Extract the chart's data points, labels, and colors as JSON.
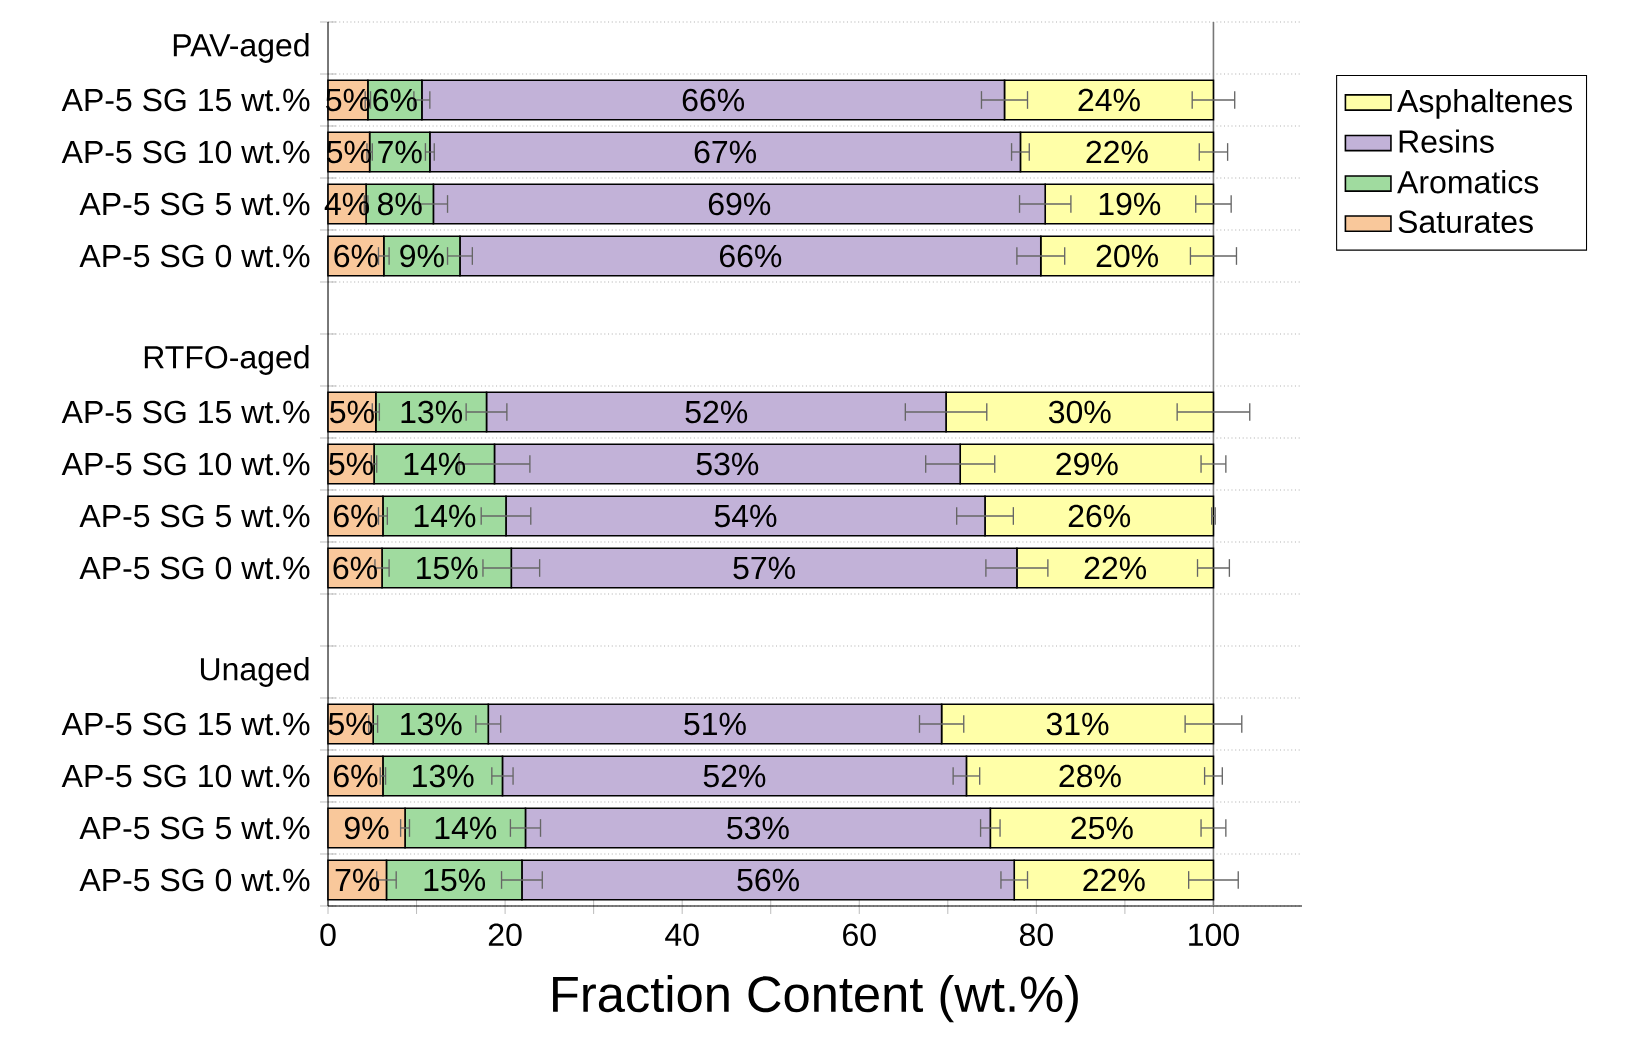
{
  "chart_data": {
    "type": "bar",
    "orientation": "horizontal",
    "stacked": true,
    "xlabel": "Fraction Content (wt.%)",
    "categories": [
      "PAV-aged",
      "AP-5 SG 15 wt.%",
      "AP-5 SG 10 wt.%",
      "AP-5 SG 5 wt.%",
      "AP-5 SG 0 wt.%",
      null,
      "RTFO-aged",
      "AP-5 SG 15 wt.%",
      "AP-5 SG 10 wt.%",
      "AP-5 SG 5 wt.%",
      "AP-5 SG 0 wt.%",
      null,
      "Unaged",
      "AP-5 SG 15 wt.%",
      "AP-5 SG 10 wt.%",
      "AP-5 SG 5 wt.%",
      "AP-5 SG 0 wt.%"
    ],
    "series": [
      {
        "name": "Saturates",
        "color": "#f9c89b",
        "values": [
          null,
          4.5,
          4.7,
          4.3,
          6.3,
          null,
          null,
          5.4,
          5.2,
          6.2,
          6.1,
          null,
          null,
          5.1,
          6.2,
          8.7,
          6.6
        ],
        "errors": [
          null,
          0.3,
          0.3,
          0.2,
          0.6,
          null,
          null,
          0.4,
          0.3,
          0.5,
          0.8,
          null,
          null,
          0.5,
          0.3,
          0.5,
          1.1
        ],
        "value_labels": [
          null,
          "5%",
          "5%",
          "4%",
          "6%",
          null,
          null,
          "5%",
          "5%",
          "6%",
          "6%",
          null,
          null,
          "5%",
          "6%",
          "9%",
          "7%"
        ]
      },
      {
        "name": "Aromatics",
        "color": "#a0db9f",
        "values": [
          null,
          6.1,
          6.8,
          7.6,
          8.6,
          null,
          null,
          12.5,
          13.6,
          13.9,
          14.6,
          null,
          null,
          13.0,
          13.5,
          13.6,
          15.3
        ],
        "errors": [
          null,
          0.9,
          0.5,
          1.6,
          1.4,
          null,
          null,
          2.3,
          4.0,
          2.8,
          3.2,
          null,
          null,
          1.4,
          1.2,
          1.7,
          2.3
        ],
        "value_labels": [
          null,
          "6%",
          "7%",
          "8%",
          "9%",
          null,
          null,
          "13%",
          "14%",
          "14%",
          "15%",
          null,
          null,
          "13%",
          "13%",
          "14%",
          "15%"
        ]
      },
      {
        "name": "Resins",
        "color": "#c2b2d8",
        "values": [
          null,
          65.8,
          66.7,
          69.1,
          65.6,
          null,
          null,
          51.9,
          52.6,
          54.1,
          57.1,
          null,
          null,
          51.2,
          52.4,
          52.5,
          55.6
        ],
        "errors": [
          null,
          2.6,
          1.0,
          2.9,
          2.7,
          null,
          null,
          4.6,
          3.9,
          3.2,
          3.5,
          null,
          null,
          2.5,
          1.5,
          1.1,
          1.5
        ],
        "value_labels": [
          null,
          "66%",
          "67%",
          "69%",
          "66%",
          null,
          null,
          "52%",
          "53%",
          "54%",
          "57%",
          null,
          null,
          "51%",
          "52%",
          "53%",
          "56%"
        ]
      },
      {
        "name": "Asphaltenes",
        "color": "#ffffa8",
        "values": [
          null,
          23.6,
          21.8,
          19.0,
          19.5,
          null,
          null,
          30.2,
          28.6,
          25.8,
          22.2,
          null,
          null,
          30.7,
          27.9,
          25.2,
          22.5
        ],
        "errors": [
          null,
          2.4,
          1.6,
          2.0,
          2.6,
          null,
          null,
          4.1,
          1.4,
          0.2,
          1.8,
          null,
          null,
          3.2,
          1.0,
          1.4,
          2.8
        ],
        "value_labels": [
          null,
          "24%",
          "22%",
          "19%",
          "20%",
          null,
          null,
          "30%",
          "29%",
          "26%",
          "22%",
          null,
          null,
          "31%",
          "28%",
          "25%",
          "22%"
        ]
      }
    ],
    "xlim": [
      0,
      110
    ],
    "xticks": [
      0,
      20,
      40,
      60,
      80,
      100
    ],
    "ref_lines": [
      {
        "axis": "x",
        "value": 100,
        "color": "#777777"
      }
    ],
    "grid": "y",
    "legend": "top right"
  }
}
